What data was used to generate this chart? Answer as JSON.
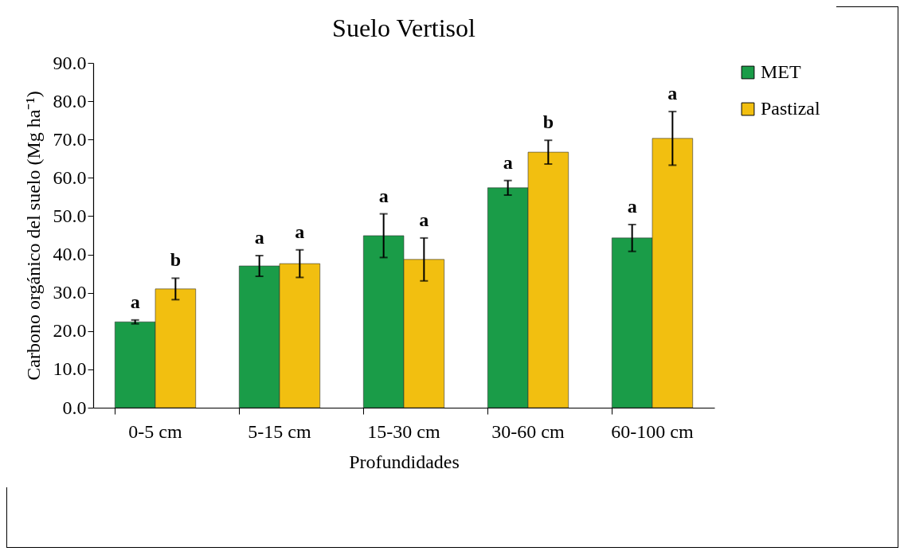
{
  "chart_data": {
    "type": "bar",
    "title": "Suelo Vertisol",
    "xlabel": "Profundidades",
    "ylabel": "Carbono orgánico del suelo (Mg ha⁻¹)",
    "categories": [
      "0-5 cm",
      "5-15 cm",
      "15-30 cm",
      "30-60 cm",
      "60-100 cm"
    ],
    "series": [
      {
        "name": "MET",
        "color": "#1a9c48",
        "values": [
          22.4,
          37.0,
          44.9,
          57.4,
          44.3
        ],
        "errors": [
          0.5,
          2.7,
          5.7,
          1.9,
          3.5
        ],
        "value_labels": [
          "a",
          "a",
          "a",
          "a",
          "a"
        ]
      },
      {
        "name": "Pastizal",
        "color": "#f2bf10",
        "values": [
          31.0,
          37.6,
          38.7,
          66.7,
          70.3
        ],
        "errors": [
          2.8,
          3.6,
          5.6,
          3.1,
          7.0
        ],
        "value_labels": [
          "b",
          "a",
          "a",
          "b",
          "a"
        ]
      }
    ],
    "ylim": [
      0,
      90
    ],
    "yticks": [
      {
        "value": 0,
        "label": "0.0"
      },
      {
        "value": 10,
        "label": "10.0"
      },
      {
        "value": 20,
        "label": "20.0"
      },
      {
        "value": 30,
        "label": "30.0"
      },
      {
        "value": 40,
        "label": "40.0"
      },
      {
        "value": 50,
        "label": "50.0"
      },
      {
        "value": 60,
        "label": "60.0"
      },
      {
        "value": 70,
        "label": "70.0"
      },
      {
        "value": 80,
        "label": "80.0"
      },
      {
        "value": 90,
        "label": "90.0"
      }
    ],
    "grid": false,
    "legend": "right"
  }
}
